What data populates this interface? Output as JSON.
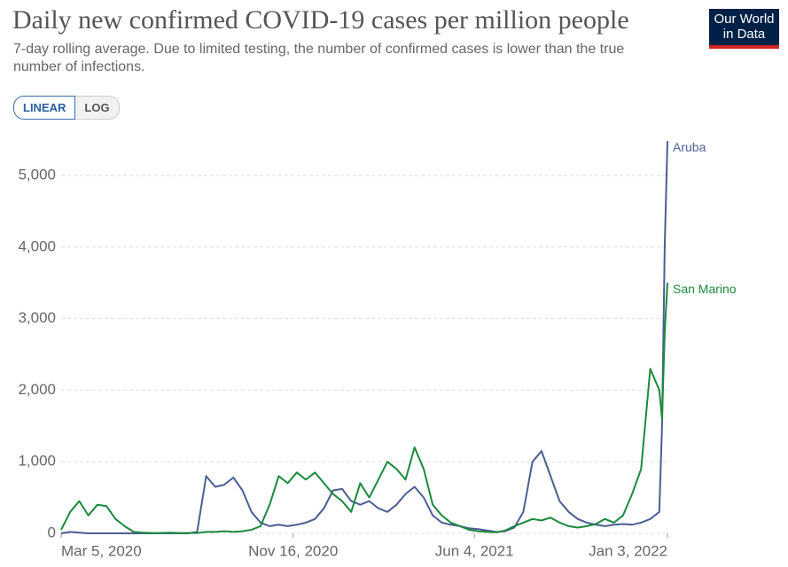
{
  "chart_data": {
    "type": "line",
    "title": "Daily new confirmed COVID-19 cases per million people",
    "subtitle": "7-day rolling average. Due to limited testing, the number of confirmed cases is lower than the true number of infections.",
    "x": [
      "2020-03-05",
      "2020-03-15",
      "2020-03-25",
      "2020-04-04",
      "2020-04-14",
      "2020-04-24",
      "2020-05-04",
      "2020-05-14",
      "2020-05-24",
      "2020-06-03",
      "2020-06-13",
      "2020-06-23",
      "2020-07-03",
      "2020-07-13",
      "2020-07-23",
      "2020-08-02",
      "2020-08-12",
      "2020-08-22",
      "2020-09-01",
      "2020-09-11",
      "2020-09-21",
      "2020-10-01",
      "2020-10-11",
      "2020-10-21",
      "2020-10-31",
      "2020-11-10",
      "2020-11-20",
      "2020-11-30",
      "2020-12-10",
      "2020-12-20",
      "2020-12-30",
      "2021-01-09",
      "2021-01-19",
      "2021-01-29",
      "2021-02-08",
      "2021-02-18",
      "2021-02-28",
      "2021-03-10",
      "2021-03-20",
      "2021-03-30",
      "2021-04-09",
      "2021-04-19",
      "2021-04-29",
      "2021-05-09",
      "2021-05-19",
      "2021-05-29",
      "2021-06-08",
      "2021-06-18",
      "2021-06-28",
      "2021-07-08",
      "2021-07-18",
      "2021-07-28",
      "2021-08-07",
      "2021-08-17",
      "2021-08-27",
      "2021-09-06",
      "2021-09-16",
      "2021-09-26",
      "2021-10-06",
      "2021-10-16",
      "2021-10-26",
      "2021-11-05",
      "2021-11-15",
      "2021-11-25",
      "2021-12-05",
      "2021-12-15",
      "2021-12-25",
      "2021-12-28",
      "2021-12-31",
      "2022-01-03"
    ],
    "series": [
      {
        "name": "Aruba",
        "color": "#4c5e93",
        "values": [
          0,
          20,
          10,
          0,
          0,
          0,
          0,
          0,
          0,
          0,
          0,
          0,
          0,
          0,
          0,
          20,
          800,
          650,
          680,
          780,
          600,
          300,
          150,
          100,
          120,
          100,
          120,
          150,
          200,
          350,
          600,
          620,
          450,
          400,
          450,
          350,
          300,
          400,
          550,
          650,
          500,
          250,
          150,
          120,
          100,
          70,
          60,
          40,
          20,
          30,
          80,
          300,
          1000,
          1150,
          800,
          450,
          300,
          200,
          150,
          120,
          100,
          120,
          130,
          120,
          150,
          200,
          300,
          1500,
          4000,
          5480
        ]
      },
      {
        "name": "San Marino",
        "color": "#1a8a3c",
        "values": [
          50,
          300,
          450,
          250,
          400,
          380,
          200,
          100,
          20,
          10,
          5,
          5,
          10,
          5,
          5,
          5,
          20,
          20,
          30,
          20,
          30,
          50,
          100,
          400,
          800,
          700,
          850,
          750,
          850,
          700,
          550,
          450,
          300,
          700,
          500,
          750,
          1000,
          900,
          750,
          1200,
          900,
          400,
          250,
          150,
          100,
          50,
          30,
          20,
          15,
          40,
          100,
          150,
          200,
          180,
          220,
          150,
          100,
          80,
          100,
          130,
          200,
          150,
          250,
          550,
          900,
          2300,
          2000,
          1600,
          2800,
          3500
        ]
      }
    ],
    "xlim": [
      "2020-03-05",
      "2022-01-03"
    ],
    "xticks": [
      {
        "value": "2020-03-05",
        "label": "Mar 5, 2020"
      },
      {
        "value": "2020-11-16",
        "label": "Nov 16, 2020"
      },
      {
        "value": "2021-06-04",
        "label": "Jun 4, 2021"
      },
      {
        "value": "2022-01-03",
        "label": "Jan 3, 2022"
      }
    ],
    "ylim": [
      0,
      5500
    ],
    "yticks": [
      0,
      {
        "value": 1000,
        "label": "1,000"
      },
      {
        "value": 2000,
        "label": "2,000"
      },
      {
        "value": 3000,
        "label": "3,000"
      },
      {
        "value": 4000,
        "label": "4,000"
      },
      {
        "value": 5000,
        "label": "5,000"
      }
    ],
    "grid": true,
    "log_scale": false
  },
  "logo": [
    "Our World",
    "in Data"
  ],
  "scale_buttons": [
    "LINEAR",
    "LOG"
  ]
}
